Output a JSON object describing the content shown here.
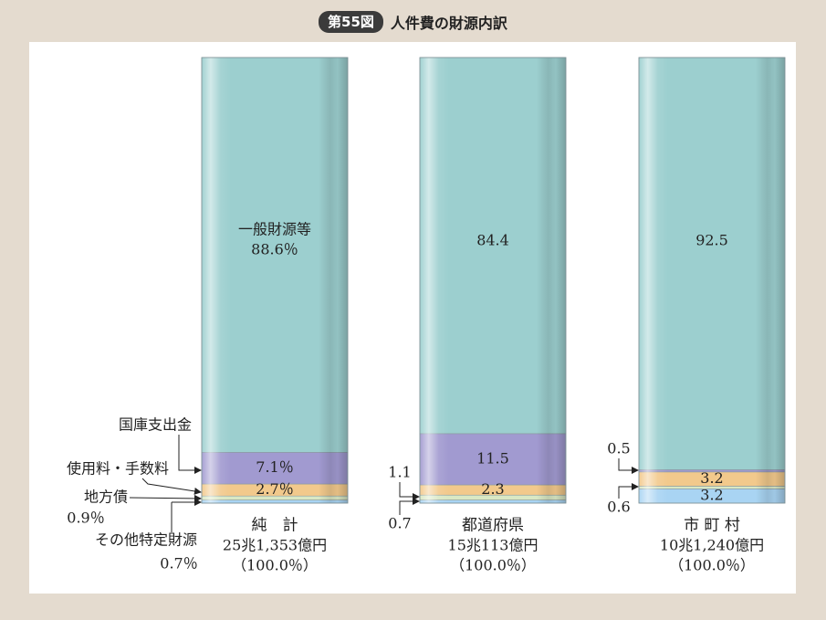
{
  "header": {
    "figure_number": "第55図",
    "title": "人件費の財源内訳"
  },
  "colors": {
    "page_background": "#e4dbcf",
    "panel_background": "#ffffff",
    "general_funds": "#9ccfcf",
    "national_treasury": "#a19ad0",
    "fees": "#f2c98c",
    "local_bonds": "#d9e8c4",
    "other_specific": "#a9d4f3"
  },
  "chart_data": {
    "type": "bar",
    "stacked": true,
    "orientation": "vertical",
    "unit": "%",
    "categories": [
      {
        "name": "純　計",
        "total": "25兆1,353億円",
        "share": "（100.0％）"
      },
      {
        "name": "都道府県",
        "total": "15兆113億円",
        "share": "（100.0％）"
      },
      {
        "name": "市 町 村",
        "total": "10兆1,240億円",
        "share": "（100.0％）"
      }
    ],
    "series": [
      {
        "name": "一般財源等",
        "key": "general_funds",
        "values": [
          88.6,
          84.4,
          92.5
        ],
        "labels": [
          "88.6％",
          "84.4",
          "92.5"
        ]
      },
      {
        "name": "国庫支出金",
        "key": "national_treasury",
        "values": [
          7.1,
          11.5,
          0.5
        ],
        "labels": [
          "7.1％",
          "11.5",
          "0.5"
        ]
      },
      {
        "name": "使用料・手数料",
        "key": "fees",
        "values": [
          2.7,
          2.3,
          3.2
        ],
        "labels": [
          "2.7％",
          "2.3",
          "3.2"
        ]
      },
      {
        "name": "地方債",
        "key": "local_bonds",
        "values": [
          0.9,
          1.1,
          0.6
        ],
        "labels": [
          "0.9％",
          "1.1",
          "0.6"
        ]
      },
      {
        "name": "その他特定財源",
        "key": "other_specific",
        "values": [
          0.7,
          0.7,
          3.2
        ],
        "labels": [
          "0.7％",
          "0.7",
          "3.2"
        ]
      }
    ]
  }
}
